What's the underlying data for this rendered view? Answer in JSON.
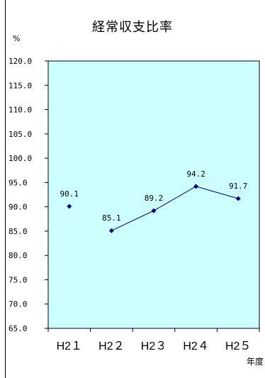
{
  "chart_data": {
    "type": "line",
    "title": "経常収支比率",
    "ylabel": "%",
    "xlabel": "年度",
    "categories": [
      "H21",
      "H22",
      "H23",
      "H24",
      "H25"
    ],
    "ylim": [
      65.0,
      120.0
    ],
    "ytick_step": 5,
    "yticks": [
      "65.0",
      "70.0",
      "75.0",
      "80.0",
      "85.0",
      "90.0",
      "95.0",
      "100.0",
      "105.0",
      "110.0",
      "115.0",
      "120.0"
    ],
    "category_labels": [
      "H2１",
      "H2２",
      "H2３",
      "H2４",
      "H2５"
    ],
    "series": [
      {
        "values": [
          90.1,
          85.1,
          89.2,
          94.2,
          91.7
        ],
        "data_labels": [
          "90.1",
          "85.1",
          "89.2",
          "94.2",
          "91.7"
        ],
        "connected": [
          false,
          true,
          true,
          true,
          true
        ]
      }
    ],
    "grid": false,
    "legend": "none",
    "colors": {
      "plot_background": "#ccffff",
      "line": "#000080",
      "marker": "#000080"
    }
  }
}
